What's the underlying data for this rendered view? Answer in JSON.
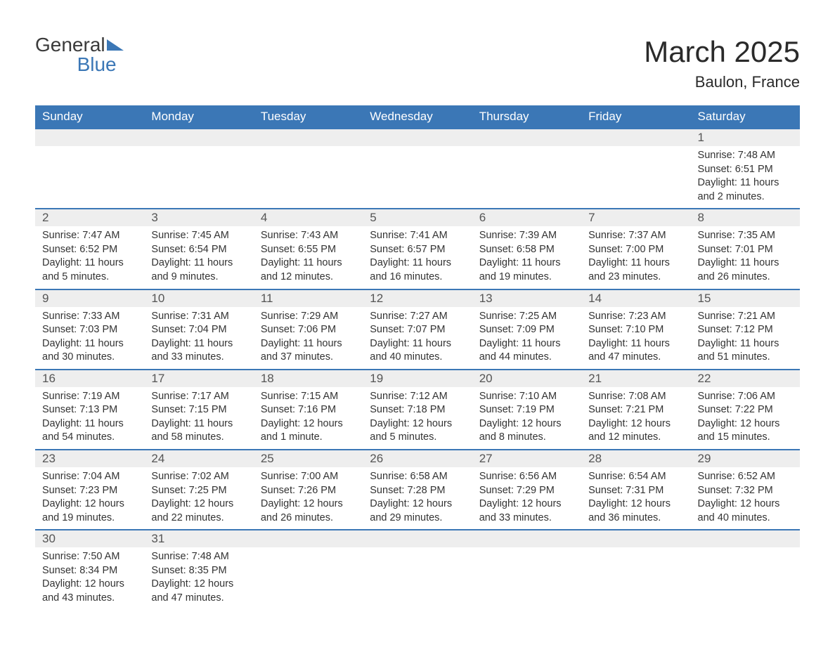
{
  "logo": {
    "line1": "General",
    "line2": "Blue"
  },
  "title": "March 2025",
  "location": "Baulon, France",
  "colors": {
    "header_bg": "#3b77b6",
    "header_text": "#ffffff",
    "daynum_bg": "#eeeeee",
    "border": "#3b77b6",
    "text": "#333333",
    "logo_accent": "#3b77b6"
  },
  "day_labels": [
    "Sunday",
    "Monday",
    "Tuesday",
    "Wednesday",
    "Thursday",
    "Friday",
    "Saturday"
  ],
  "weeks": [
    [
      null,
      null,
      null,
      null,
      null,
      null,
      {
        "n": "1",
        "sr": "Sunrise: 7:48 AM",
        "ss": "Sunset: 6:51 PM",
        "d1": "Daylight: 11 hours",
        "d2": "and 2 minutes."
      }
    ],
    [
      {
        "n": "2",
        "sr": "Sunrise: 7:47 AM",
        "ss": "Sunset: 6:52 PM",
        "d1": "Daylight: 11 hours",
        "d2": "and 5 minutes."
      },
      {
        "n": "3",
        "sr": "Sunrise: 7:45 AM",
        "ss": "Sunset: 6:54 PM",
        "d1": "Daylight: 11 hours",
        "d2": "and 9 minutes."
      },
      {
        "n": "4",
        "sr": "Sunrise: 7:43 AM",
        "ss": "Sunset: 6:55 PM",
        "d1": "Daylight: 11 hours",
        "d2": "and 12 minutes."
      },
      {
        "n": "5",
        "sr": "Sunrise: 7:41 AM",
        "ss": "Sunset: 6:57 PM",
        "d1": "Daylight: 11 hours",
        "d2": "and 16 minutes."
      },
      {
        "n": "6",
        "sr": "Sunrise: 7:39 AM",
        "ss": "Sunset: 6:58 PM",
        "d1": "Daylight: 11 hours",
        "d2": "and 19 minutes."
      },
      {
        "n": "7",
        "sr": "Sunrise: 7:37 AM",
        "ss": "Sunset: 7:00 PM",
        "d1": "Daylight: 11 hours",
        "d2": "and 23 minutes."
      },
      {
        "n": "8",
        "sr": "Sunrise: 7:35 AM",
        "ss": "Sunset: 7:01 PM",
        "d1": "Daylight: 11 hours",
        "d2": "and 26 minutes."
      }
    ],
    [
      {
        "n": "9",
        "sr": "Sunrise: 7:33 AM",
        "ss": "Sunset: 7:03 PM",
        "d1": "Daylight: 11 hours",
        "d2": "and 30 minutes."
      },
      {
        "n": "10",
        "sr": "Sunrise: 7:31 AM",
        "ss": "Sunset: 7:04 PM",
        "d1": "Daylight: 11 hours",
        "d2": "and 33 minutes."
      },
      {
        "n": "11",
        "sr": "Sunrise: 7:29 AM",
        "ss": "Sunset: 7:06 PM",
        "d1": "Daylight: 11 hours",
        "d2": "and 37 minutes."
      },
      {
        "n": "12",
        "sr": "Sunrise: 7:27 AM",
        "ss": "Sunset: 7:07 PM",
        "d1": "Daylight: 11 hours",
        "d2": "and 40 minutes."
      },
      {
        "n": "13",
        "sr": "Sunrise: 7:25 AM",
        "ss": "Sunset: 7:09 PM",
        "d1": "Daylight: 11 hours",
        "d2": "and 44 minutes."
      },
      {
        "n": "14",
        "sr": "Sunrise: 7:23 AM",
        "ss": "Sunset: 7:10 PM",
        "d1": "Daylight: 11 hours",
        "d2": "and 47 minutes."
      },
      {
        "n": "15",
        "sr": "Sunrise: 7:21 AM",
        "ss": "Sunset: 7:12 PM",
        "d1": "Daylight: 11 hours",
        "d2": "and 51 minutes."
      }
    ],
    [
      {
        "n": "16",
        "sr": "Sunrise: 7:19 AM",
        "ss": "Sunset: 7:13 PM",
        "d1": "Daylight: 11 hours",
        "d2": "and 54 minutes."
      },
      {
        "n": "17",
        "sr": "Sunrise: 7:17 AM",
        "ss": "Sunset: 7:15 PM",
        "d1": "Daylight: 11 hours",
        "d2": "and 58 minutes."
      },
      {
        "n": "18",
        "sr": "Sunrise: 7:15 AM",
        "ss": "Sunset: 7:16 PM",
        "d1": "Daylight: 12 hours",
        "d2": "and 1 minute."
      },
      {
        "n": "19",
        "sr": "Sunrise: 7:12 AM",
        "ss": "Sunset: 7:18 PM",
        "d1": "Daylight: 12 hours",
        "d2": "and 5 minutes."
      },
      {
        "n": "20",
        "sr": "Sunrise: 7:10 AM",
        "ss": "Sunset: 7:19 PM",
        "d1": "Daylight: 12 hours",
        "d2": "and 8 minutes."
      },
      {
        "n": "21",
        "sr": "Sunrise: 7:08 AM",
        "ss": "Sunset: 7:21 PM",
        "d1": "Daylight: 12 hours",
        "d2": "and 12 minutes."
      },
      {
        "n": "22",
        "sr": "Sunrise: 7:06 AM",
        "ss": "Sunset: 7:22 PM",
        "d1": "Daylight: 12 hours",
        "d2": "and 15 minutes."
      }
    ],
    [
      {
        "n": "23",
        "sr": "Sunrise: 7:04 AM",
        "ss": "Sunset: 7:23 PM",
        "d1": "Daylight: 12 hours",
        "d2": "and 19 minutes."
      },
      {
        "n": "24",
        "sr": "Sunrise: 7:02 AM",
        "ss": "Sunset: 7:25 PM",
        "d1": "Daylight: 12 hours",
        "d2": "and 22 minutes."
      },
      {
        "n": "25",
        "sr": "Sunrise: 7:00 AM",
        "ss": "Sunset: 7:26 PM",
        "d1": "Daylight: 12 hours",
        "d2": "and 26 minutes."
      },
      {
        "n": "26",
        "sr": "Sunrise: 6:58 AM",
        "ss": "Sunset: 7:28 PM",
        "d1": "Daylight: 12 hours",
        "d2": "and 29 minutes."
      },
      {
        "n": "27",
        "sr": "Sunrise: 6:56 AM",
        "ss": "Sunset: 7:29 PM",
        "d1": "Daylight: 12 hours",
        "d2": "and 33 minutes."
      },
      {
        "n": "28",
        "sr": "Sunrise: 6:54 AM",
        "ss": "Sunset: 7:31 PM",
        "d1": "Daylight: 12 hours",
        "d2": "and 36 minutes."
      },
      {
        "n": "29",
        "sr": "Sunrise: 6:52 AM",
        "ss": "Sunset: 7:32 PM",
        "d1": "Daylight: 12 hours",
        "d2": "and 40 minutes."
      }
    ],
    [
      {
        "n": "30",
        "sr": "Sunrise: 7:50 AM",
        "ss": "Sunset: 8:34 PM",
        "d1": "Daylight: 12 hours",
        "d2": "and 43 minutes."
      },
      {
        "n": "31",
        "sr": "Sunrise: 7:48 AM",
        "ss": "Sunset: 8:35 PM",
        "d1": "Daylight: 12 hours",
        "d2": "and 47 minutes."
      },
      null,
      null,
      null,
      null,
      null
    ]
  ]
}
